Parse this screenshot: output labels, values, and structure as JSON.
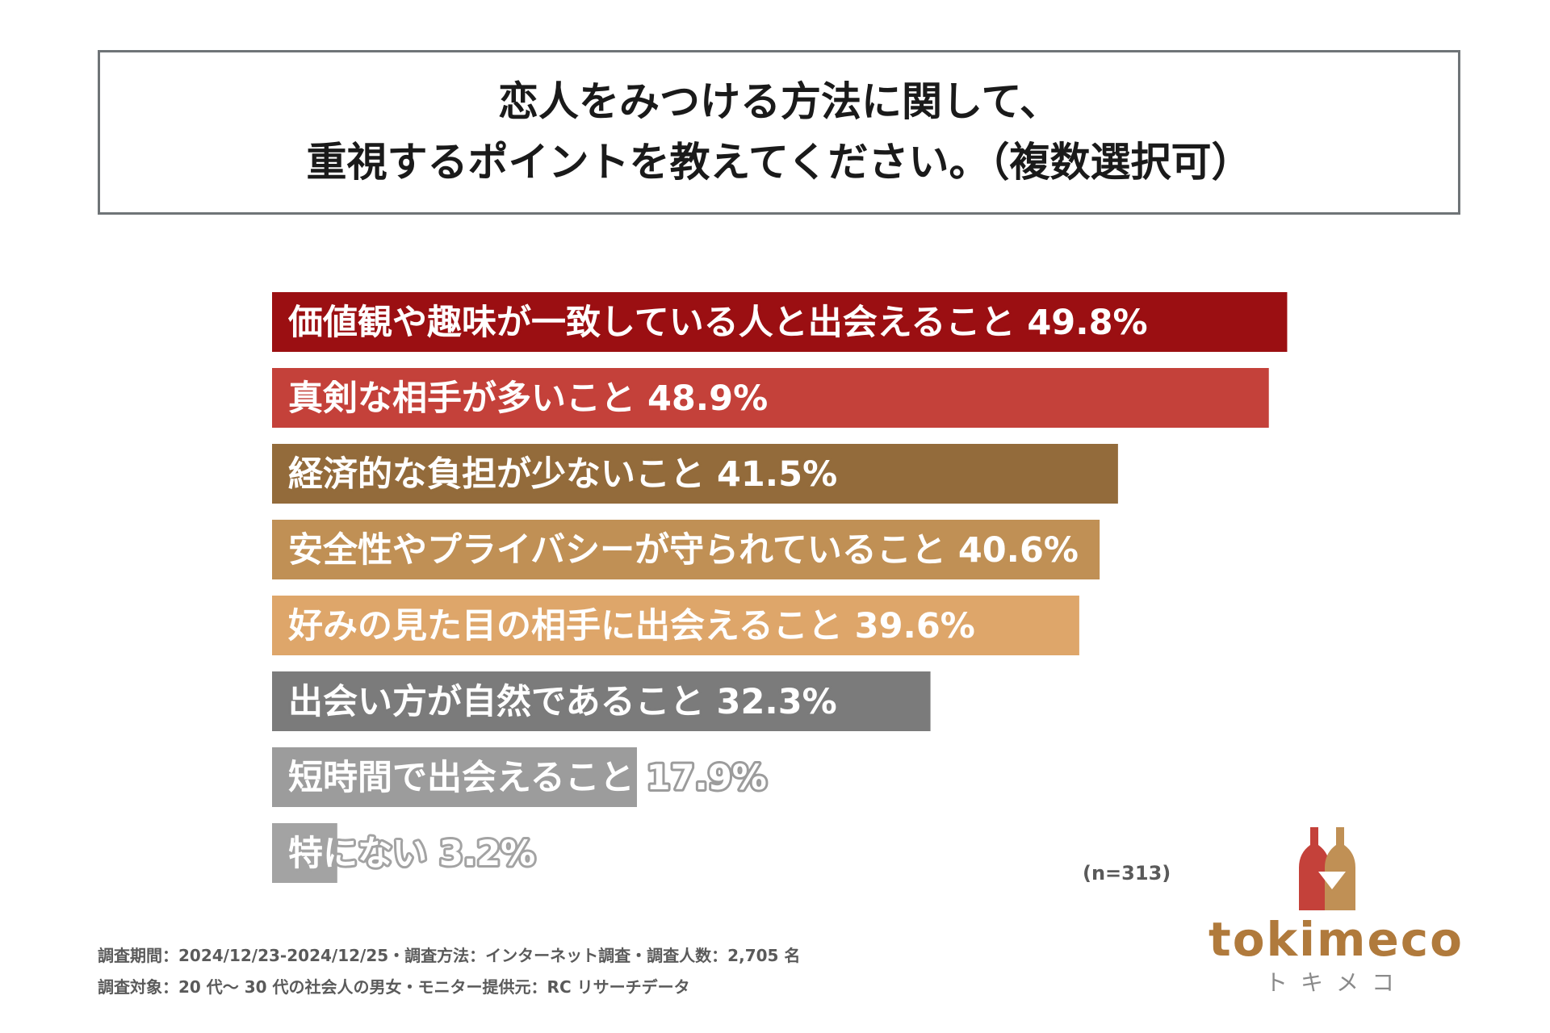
{
  "title": {
    "line1": "恋人をみつける方法に関して、",
    "line2": "重視するポイントを教えてください。（複数選択可）"
  },
  "chart_data": {
    "type": "bar",
    "orientation": "horizontal",
    "xlim": [
      0,
      50
    ],
    "categories": [
      "価値観や趣味が一致している人と出会えること",
      "真剣な相手が多いこと",
      "経済的な負担が少ないこと",
      "安全性やプライバシーが守られていること",
      "好みの見た目の相手に出会えること",
      "出会い方が自然であること",
      "短時間で出会えること",
      "特にない"
    ],
    "values": [
      49.8,
      48.9,
      41.5,
      40.6,
      39.6,
      32.3,
      17.9,
      3.2
    ],
    "value_labels": [
      "49.8%",
      "48.9%",
      "41.5%",
      "40.6%",
      "39.6%",
      "32.3%",
      "17.9%",
      "3.2%"
    ],
    "colors": [
      "#9b0f12",
      "#c4413a",
      "#936b3b",
      "#c09055",
      "#dea66a",
      "#7b7b7b",
      "#9c9c9c",
      "#a3a3a3"
    ],
    "outline_colors": [
      "#9b0f12",
      "#c4413a",
      "#936b3b",
      "#c09055",
      "#dea66a",
      "#7b7b7b",
      "#9c9c9c",
      "#a3a3a3"
    ]
  },
  "sample_size": "(n=313)",
  "footer": {
    "line1": "調査期間：2024/12/23-2024/12/25・調査方法：インターネット調査・調査人数：2,705 名",
    "line2": "調査対象：20 代～ 30 代の社会人の男女・モニター提供元：RC リサーチデータ"
  },
  "logo": {
    "text": "tokimeco",
    "sub": "トキメコ",
    "colors": {
      "red": "#c4413a",
      "gold": "#c09055"
    }
  }
}
